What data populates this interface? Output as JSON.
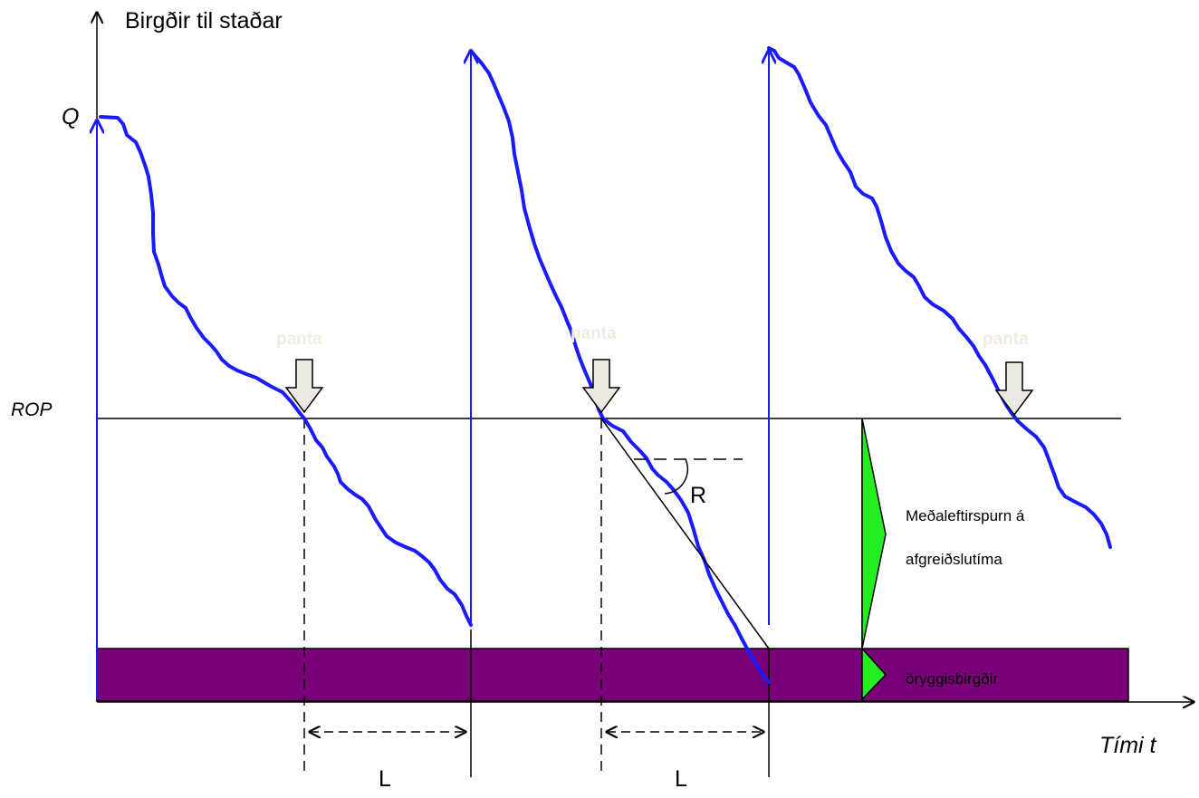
{
  "labels": {
    "y_axis": "Birgðir til staðar",
    "q": "Q",
    "rop": "ROP",
    "x_axis": "Tími t",
    "lead_time_1": "L",
    "lead_time_2": "L",
    "rate": "R",
    "order_1": "panta",
    "order_2": "panta",
    "order_3": "panta",
    "avg_demand_line1": "Meðaleftirspurn á",
    "avg_demand_line2": "afgreiðslutíma",
    "safety_stock": "öryggisbirgðir"
  },
  "colors": {
    "inventory_curve": "#1a1aff",
    "replenishment_line": "#1a1aff",
    "safety_band": "#7a007a",
    "brace_fill": "#22ee22",
    "order_arrow_fill": "#ebe9e0",
    "order_label": "#f0ecdf"
  },
  "icons": {
    "order_marker": "down-arrow-icon",
    "brace": "triangle-brace"
  }
}
